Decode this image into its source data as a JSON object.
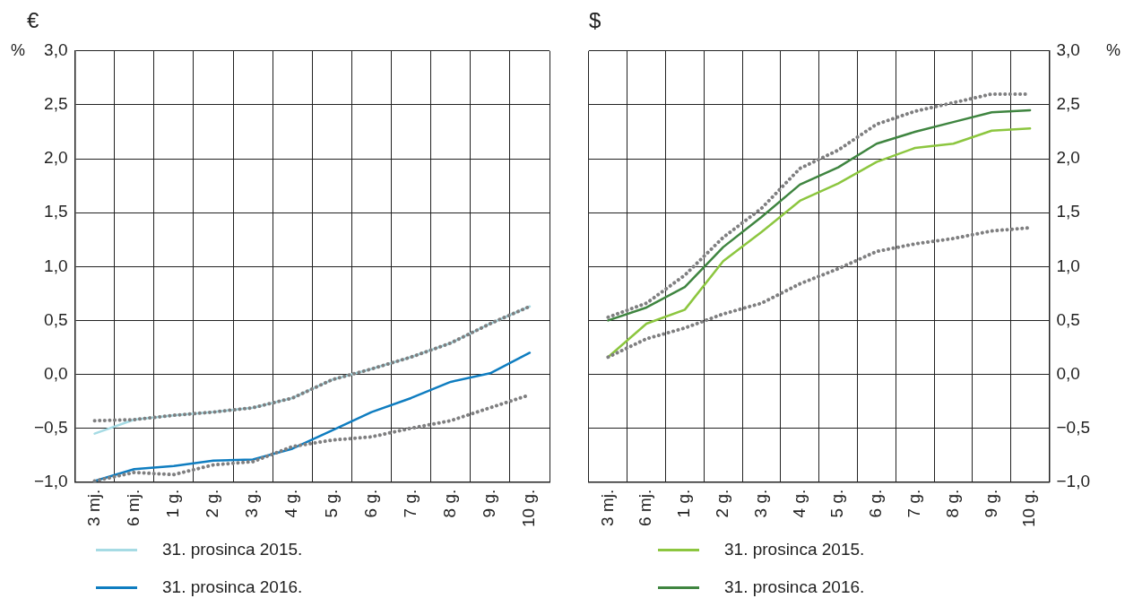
{
  "chart_data": [
    {
      "type": "line",
      "title": "€",
      "ylabel": "%",
      "categories": [
        "3 mj.",
        "6 mj.",
        "1 g.",
        "2 g.",
        "3 g.",
        "4 g.",
        "5 g.",
        "6 g.",
        "7 g.",
        "8 g.",
        "9 g.",
        "10 g."
      ],
      "series": [
        {
          "color": "#7f7f80",
          "line_style": "dotted",
          "values": [
            -0.43,
            -0.42,
            -0.38,
            -0.35,
            -0.31,
            -0.22,
            -0.05,
            0.05,
            0.16,
            0.29,
            0.47,
            0.63
          ]
        },
        {
          "color": "#7f7f80",
          "line_style": "dotted",
          "values": [
            -0.99,
            -0.91,
            -0.93,
            -0.84,
            -0.81,
            -0.67,
            -0.61,
            -0.58,
            -0.5,
            -0.43,
            -0.31,
            -0.19
          ]
        },
        {
          "name": "31. prosinca 2015.",
          "color": "#a6dbe4",
          "values": [
            -0.55,
            -0.42,
            -0.38,
            -0.35,
            -0.31,
            -0.22,
            -0.05,
            0.05,
            0.16,
            0.29,
            0.47,
            0.63
          ]
        },
        {
          "name": "31. prosinca 2016.",
          "color": "#0f7dc0",
          "values": [
            -0.99,
            -0.88,
            -0.85,
            -0.8,
            -0.79,
            -0.69,
            -0.52,
            -0.35,
            -0.22,
            -0.07,
            0.01,
            0.2
          ]
        }
      ],
      "ylim": [
        -1,
        3
      ],
      "yticks": [
        {
          "value": -1,
          "label": "−1,0"
        },
        {
          "value": -0.5,
          "label": "−0,5"
        },
        {
          "value": 0,
          "label": "0,0"
        },
        {
          "value": 0.5,
          "label": "0,5"
        },
        {
          "value": 1,
          "label": "1,0"
        },
        {
          "value": 1.5,
          "label": "1,5"
        },
        {
          "value": 2,
          "label": "2,0"
        },
        {
          "value": 2.5,
          "label": "2,5"
        },
        {
          "value": 3,
          "label": "3,0"
        }
      ],
      "grid": true,
      "legend": "bottom left",
      "marker": "none"
    },
    {
      "type": "line",
      "title": "$",
      "y2label": "%",
      "categories": [
        "3 mj.",
        "6 mj.",
        "1 g.",
        "2 g.",
        "3 g.",
        "4 g.",
        "5 g.",
        "6 g.",
        "7 g.",
        "8 g.",
        "9 g.",
        "10 g."
      ],
      "series": [
        {
          "color": "#7f7f80",
          "line_style": "dotted",
          "axis": "y2",
          "values": [
            0.53,
            0.66,
            0.92,
            1.27,
            1.54,
            1.91,
            2.08,
            2.32,
            2.44,
            2.52,
            2.6,
            2.6
          ]
        },
        {
          "color": "#7f7f80",
          "line_style": "dotted",
          "axis": "y2",
          "values": [
            0.16,
            0.33,
            0.43,
            0.56,
            0.66,
            0.84,
            0.98,
            1.14,
            1.21,
            1.26,
            1.33,
            1.36
          ]
        },
        {
          "name": "31. prosinca 2015.",
          "color": "#8cc63f",
          "axis": "y2",
          "values": [
            0.16,
            0.47,
            0.6,
            1.05,
            1.32,
            1.61,
            1.77,
            1.97,
            2.1,
            2.14,
            2.26,
            2.28
          ]
        },
        {
          "name": "31. prosinca 2016.",
          "color": "#3f8540",
          "axis": "y2",
          "values": [
            0.5,
            0.62,
            0.81,
            1.18,
            1.46,
            1.76,
            1.92,
            2.14,
            2.25,
            2.34,
            2.43,
            2.45
          ]
        }
      ],
      "y2lim": [
        -1,
        3
      ],
      "y2ticks": [
        {
          "value": -1,
          "label": "−1,0"
        },
        {
          "value": -0.5,
          "label": "−0,5"
        },
        {
          "value": 0,
          "label": "0,0"
        },
        {
          "value": 0.5,
          "label": "0,5"
        },
        {
          "value": 1,
          "label": "1,0"
        },
        {
          "value": 1.5,
          "label": "1,5"
        },
        {
          "value": 2,
          "label": "2,0"
        },
        {
          "value": 2.5,
          "label": "2,5"
        },
        {
          "value": 3,
          "label": "3,0"
        }
      ],
      "grid": true,
      "legend": "bottom left",
      "marker": "none"
    }
  ]
}
